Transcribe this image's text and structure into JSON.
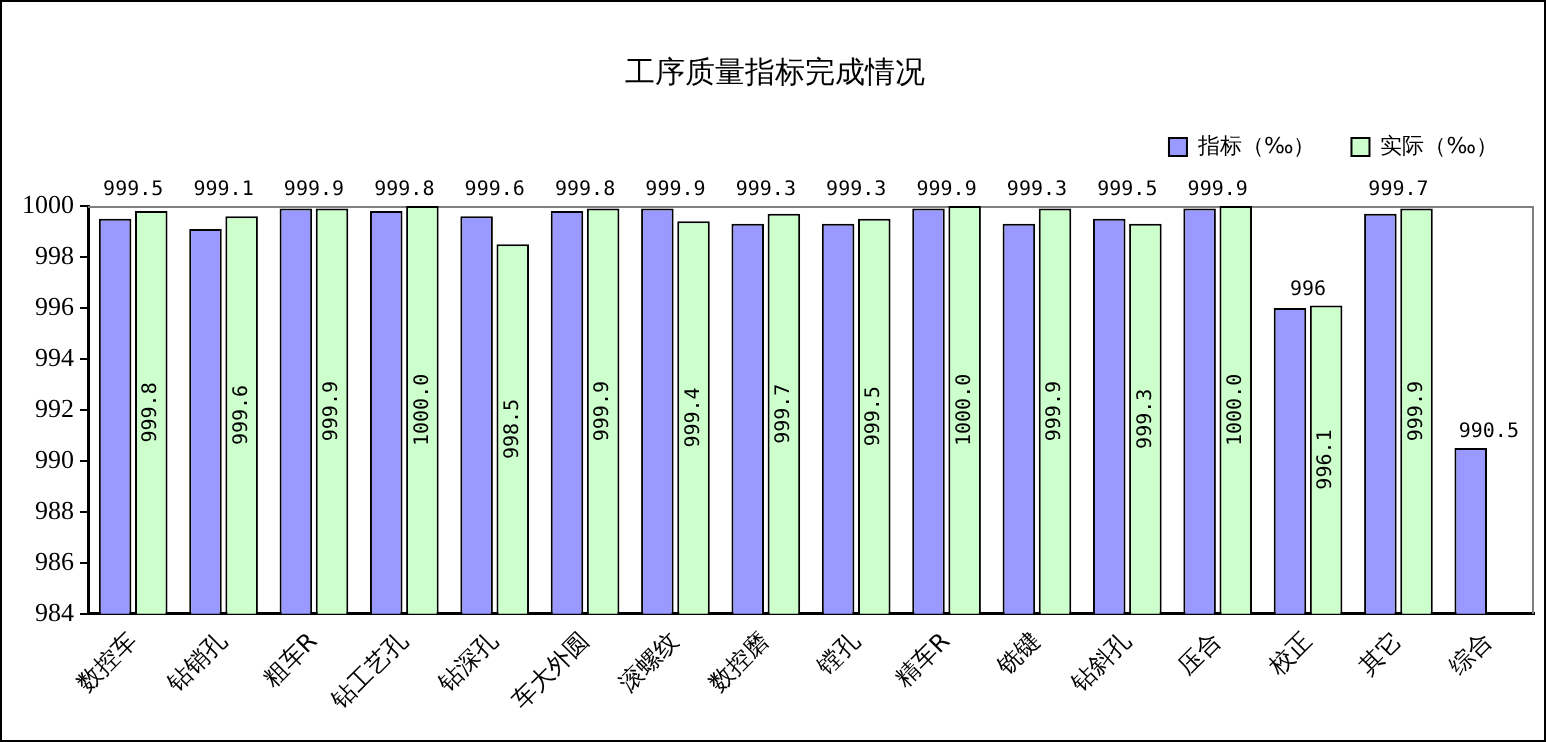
{
  "chart_data": {
    "type": "bar",
    "title": "工序质量指标完成情况",
    "categories": [
      "数控车",
      "钻销孔",
      "粗车R",
      "钻工艺孔",
      "钻深孔",
      "车大外圆",
      "滚螺纹",
      "数控磨",
      "镗孔",
      "精车R",
      "铣键",
      "钻斜孔",
      "压合",
      "校正",
      "其它",
      "综合"
    ],
    "series": [
      {
        "name": "指标（‰）",
        "color": "#9999ff",
        "values": [
          999.5,
          999.1,
          999.9,
          999.8,
          999.6,
          999.8,
          999.9,
          999.3,
          999.3,
          999.9,
          999.3,
          999.5,
          999.9,
          996,
          999.7,
          990.5
        ],
        "value_labels": [
          "999.5",
          "999.1",
          "999.9",
          "999.8",
          "999.6",
          "999.8",
          "999.9",
          "999.3",
          "999.3",
          "999.9",
          "999.3",
          "999.5",
          "999.9",
          "996",
          "999.7",
          "990.5"
        ]
      },
      {
        "name": "实际（‰）",
        "color": "#ccffcc",
        "values": [
          999.8,
          999.6,
          999.9,
          1000.0,
          998.5,
          999.9,
          999.4,
          999.7,
          999.5,
          1000.0,
          999.9,
          999.3,
          1000.0,
          996.1,
          999.9,
          null
        ],
        "value_labels": [
          "999.8",
          "999.6",
          "999.9",
          "1000.0",
          "998.5",
          "999.9",
          "999.4",
          "999.7",
          "999.5",
          "1000.0",
          "999.9",
          "999.3",
          "1000.0",
          "996.1",
          "999.9",
          null
        ]
      }
    ],
    "ylim": [
      984,
      1000
    ],
    "yticks": [
      984,
      986,
      988,
      990,
      992,
      994,
      996,
      998,
      1000
    ],
    "grid": false,
    "legend": "top right"
  }
}
